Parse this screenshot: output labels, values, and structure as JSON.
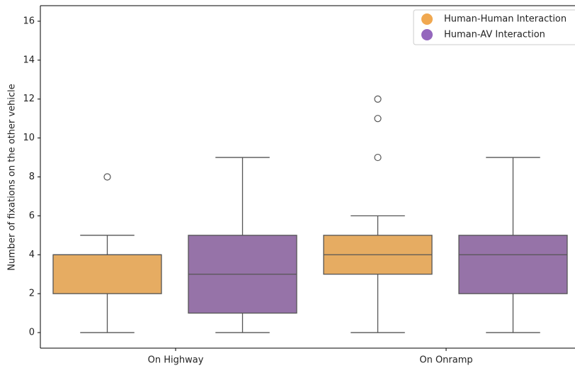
{
  "chart_data": {
    "type": "box",
    "y_label": "Number of fixations on the other vehicle",
    "categories": [
      "On Highway",
      "On Onramp"
    ],
    "ylim": [
      -0.8,
      16.8
    ],
    "yticks": [
      0,
      2,
      4,
      6,
      8,
      10,
      12,
      14,
      16
    ],
    "legend": "upper right",
    "series": [
      {
        "name": "Human-Human Interaction",
        "color": "#e6ac62",
        "legend_color": "#f0a850",
        "min": [
          0,
          0
        ],
        "q1": [
          2,
          3
        ],
        "median": [
          4,
          4
        ],
        "q3": [
          4,
          5
        ],
        "max": [
          5,
          6
        ],
        "outliers": [
          [
            8
          ],
          [
            9,
            11,
            12
          ]
        ]
      },
      {
        "name": "Human-AV Interaction",
        "color": "#9673a8",
        "legend_color": "#9467bd",
        "min": [
          0,
          0
        ],
        "q1": [
          1,
          2
        ],
        "median": [
          3,
          4
        ],
        "q3": [
          5,
          5
        ],
        "max": [
          9,
          9
        ],
        "outliers": [
          [],
          []
        ]
      }
    ]
  }
}
